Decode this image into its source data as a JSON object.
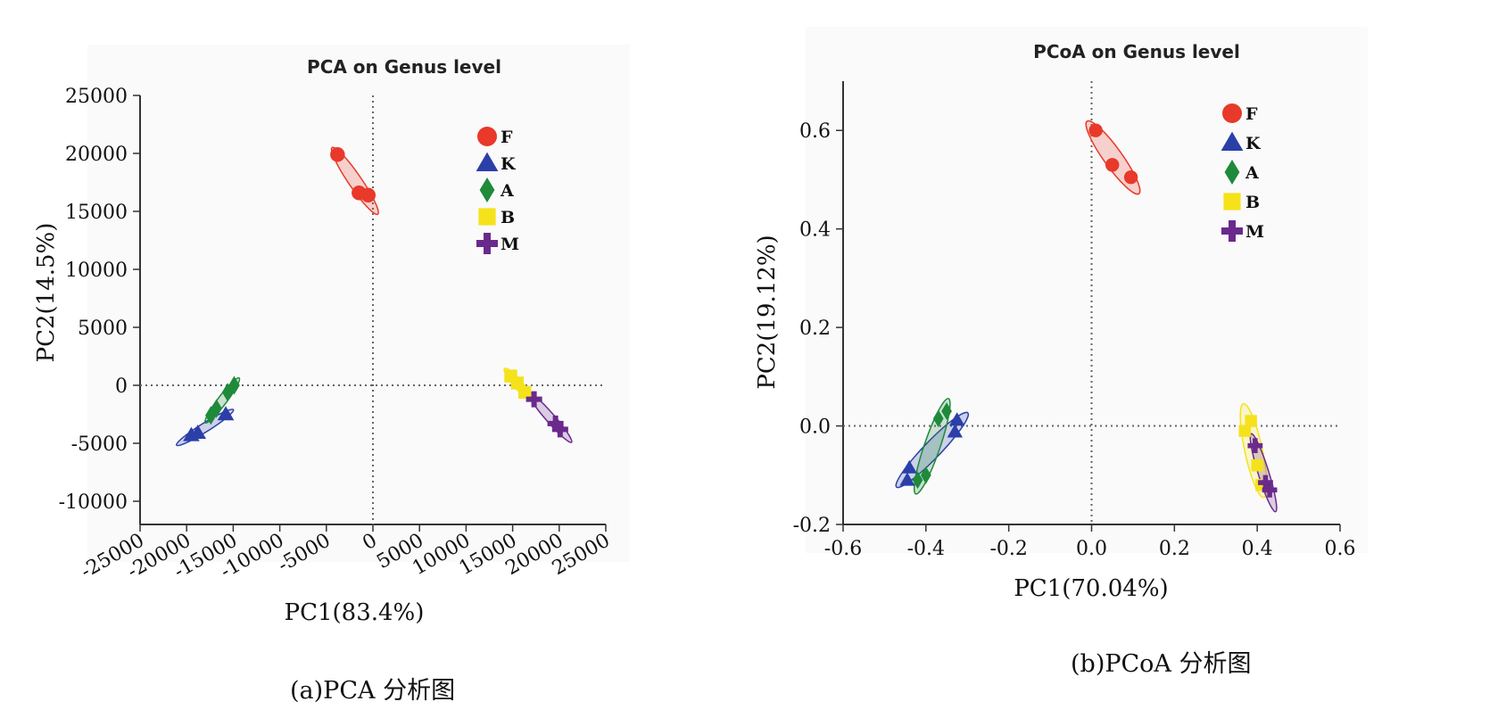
{
  "chart_data": [
    {
      "type": "scatter",
      "title": "PCA on Genus level",
      "xlabel": "PC1(83.4%)",
      "ylabel": "PC2(14.5%)",
      "caption": "(a)PCA 分析图",
      "xlim": [
        -25000,
        25000
      ],
      "ylim": [
        -12000,
        25000
      ],
      "xticks": [
        -25000,
        -20000,
        -15000,
        -10000,
        -5000,
        0,
        5000,
        10000,
        15000,
        20000,
        25000
      ],
      "yticks": [
        -10000,
        -5000,
        0,
        5000,
        10000,
        15000,
        20000,
        25000
      ],
      "grid": false,
      "reference_lines": [
        0,
        0
      ],
      "legend_position": "top-right",
      "series": [
        {
          "name": "F",
          "marker": "circle",
          "color": "#e8392a",
          "points": [
            [
              -3800,
              19900
            ],
            [
              -1500,
              16600
            ],
            [
              -500,
              16400
            ]
          ]
        },
        {
          "name": "K",
          "marker": "triangle",
          "color": "#2b3fa8",
          "points": [
            [
              -19500,
              -4300
            ],
            [
              -18800,
              -4100
            ],
            [
              -15800,
              -2500
            ]
          ]
        },
        {
          "name": "A",
          "marker": "diamond",
          "color": "#1e8a3a",
          "points": [
            [
              -17400,
              -2600
            ],
            [
              -16800,
              -2000
            ],
            [
              -15600,
              -600
            ],
            [
              -14900,
              0
            ]
          ]
        },
        {
          "name": "B",
          "marker": "square",
          "color": "#f5e21b",
          "points": [
            [
              14800,
              800
            ],
            [
              15500,
              200
            ],
            [
              16300,
              -600
            ]
          ]
        },
        {
          "name": "M",
          "marker": "plus",
          "color": "#6a2a8c",
          "points": [
            [
              17300,
              -1200
            ],
            [
              19600,
              -3300
            ],
            [
              20100,
              -3800
            ]
          ]
        }
      ]
    },
    {
      "type": "scatter",
      "title": "PCoA on Genus level",
      "xlabel": "PC1(70.04%)",
      "ylabel": "PC2(19.12%)",
      "caption": "(b)PCoA 分析图",
      "xlim": [
        -0.6,
        0.6
      ],
      "ylim": [
        -0.2,
        0.7
      ],
      "xticks": [
        -0.6,
        -0.4,
        -0.2,
        0.0,
        0.2,
        0.4,
        0.6
      ],
      "yticks": [
        -0.2,
        0.0,
        0.2,
        0.4,
        0.6
      ],
      "xtick_labels": [
        "-0.6",
        "-0.4",
        "-0.2",
        "0.0",
        "0.2",
        "0.4",
        "0.6"
      ],
      "ytick_labels": [
        "-0.2",
        "0.0",
        "0.2",
        "0.4",
        "0.6"
      ],
      "grid": false,
      "reference_lines": [
        0,
        0
      ],
      "legend_position": "top-right",
      "series": [
        {
          "name": "F",
          "marker": "circle",
          "color": "#e8392a",
          "points": [
            [
              0.01,
              0.6
            ],
            [
              0.05,
              0.53
            ],
            [
              0.095,
              0.505
            ]
          ]
        },
        {
          "name": "K",
          "marker": "triangle",
          "color": "#2b3fa8",
          "points": [
            [
              -0.445,
              -0.11
            ],
            [
              -0.44,
              -0.085
            ],
            [
              -0.33,
              -0.012
            ],
            [
              -0.325,
              0.012
            ]
          ]
        },
        {
          "name": "A",
          "marker": "diamond",
          "color": "#1e8a3a",
          "points": [
            [
              -0.42,
              -0.11
            ],
            [
              -0.4,
              -0.1
            ],
            [
              -0.37,
              0.015
            ],
            [
              -0.35,
              0.03
            ]
          ]
        },
        {
          "name": "B",
          "marker": "square",
          "color": "#f5e21b",
          "points": [
            [
              0.37,
              -0.01
            ],
            [
              0.385,
              0.01
            ],
            [
              0.4,
              -0.08
            ],
            [
              0.41,
              -0.12
            ]
          ]
        },
        {
          "name": "M",
          "marker": "plus",
          "color": "#6a2a8c",
          "points": [
            [
              0.395,
              -0.04
            ],
            [
              0.42,
              -0.115
            ],
            [
              0.43,
              -0.13
            ]
          ]
        }
      ]
    }
  ]
}
